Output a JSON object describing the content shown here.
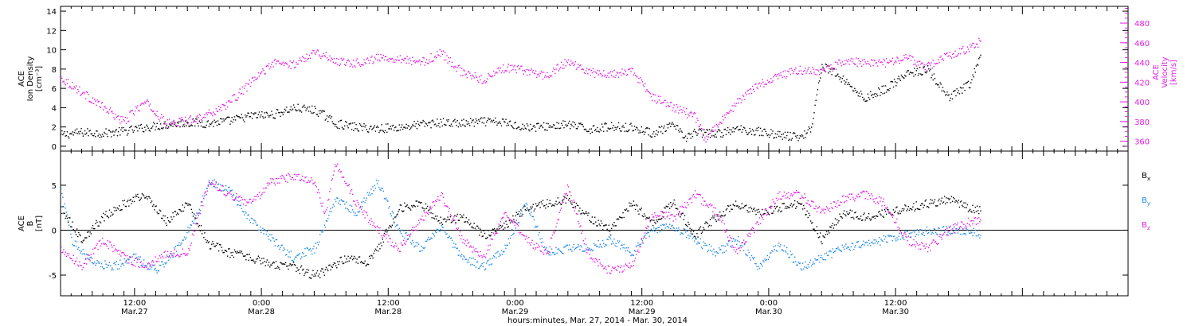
{
  "chart_data": [
    {
      "id": "ion-density-velocity",
      "type": "scatter",
      "left_axis": {
        "label_lines": [
          "ACE",
          "Ion Density",
          "[cm⁻³]"
        ],
        "ylim": [
          -0.5,
          14.5
        ],
        "ticks": [
          0,
          2,
          4,
          6,
          8,
          10,
          12,
          14
        ],
        "color": "#000000"
      },
      "right_axis": {
        "label_lines": [
          "ACE",
          "Velocity",
          "[km/s]"
        ],
        "ylim": [
          350,
          497
        ],
        "ticks": [
          360,
          380,
          400,
          420,
          440,
          460,
          480
        ],
        "color": "#e31ee3"
      },
      "series": [
        {
          "axis": "left",
          "color": "#000000",
          "points": [
            [
              0,
              1.2
            ],
            [
              2,
              1.5
            ],
            [
              4,
              1.4
            ],
            [
              6,
              1.6
            ],
            [
              8,
              2.0
            ],
            [
              10,
              2.3
            ],
            [
              12,
              2.5
            ],
            [
              14,
              2.4
            ],
            [
              16,
              2.7
            ],
            [
              18,
              3.2
            ],
            [
              20,
              3.3
            ],
            [
              22,
              4.0
            ],
            [
              24,
              3.8
            ],
            [
              25,
              3.2
            ],
            [
              26,
              2.4
            ],
            [
              28,
              2.0
            ],
            [
              30,
              1.9
            ],
            [
              32,
              2.0
            ],
            [
              34,
              2.3
            ],
            [
              36,
              2.5
            ],
            [
              38,
              2.4
            ],
            [
              40,
              2.6
            ],
            [
              42,
              2.5
            ],
            [
              44,
              2.0
            ],
            [
              46,
              2.1
            ],
            [
              48,
              2.3
            ],
            [
              50,
              1.8
            ],
            [
              52,
              2.1
            ],
            [
              54,
              2.0
            ],
            [
              56,
              1.4
            ],
            [
              58,
              2.2
            ],
            [
              59,
              0.9
            ],
            [
              60,
              1.5
            ],
            [
              62,
              1.3
            ],
            [
              64,
              1.8
            ],
            [
              66,
              1.6
            ],
            [
              68,
              1.2
            ],
            [
              70,
              1.0
            ],
            [
              71,
              2.0
            ],
            [
              72,
              8.5
            ],
            [
              74,
              7.0
            ],
            [
              76,
              5.0
            ],
            [
              78,
              6.0
            ],
            [
              80,
              7.5
            ],
            [
              82,
              8.0
            ],
            [
              84,
              5.0
            ],
            [
              86,
              6.5
            ],
            [
              87,
              9.5
            ]
          ]
        },
        {
          "axis": "right",
          "color": "#e31ee3",
          "points": [
            [
              0,
              425
            ],
            [
              2,
              410
            ],
            [
              4,
              395
            ],
            [
              6,
              380
            ],
            [
              7,
              392
            ],
            [
              8,
              400
            ],
            [
              10,
              378
            ],
            [
              12,
              382
            ],
            [
              14,
              388
            ],
            [
              16,
              400
            ],
            [
              18,
              420
            ],
            [
              20,
              440
            ],
            [
              22,
              438
            ],
            [
              24,
              452
            ],
            [
              26,
              442
            ],
            [
              28,
              440
            ],
            [
              30,
              445
            ],
            [
              32,
              445
            ],
            [
              34,
              440
            ],
            [
              36,
              450
            ],
            [
              38,
              430
            ],
            [
              40,
              423
            ],
            [
              42,
              435
            ],
            [
              44,
              432
            ],
            [
              46,
              427
            ],
            [
              48,
              442
            ],
            [
              50,
              430
            ],
            [
              52,
              428
            ],
            [
              54,
              432
            ],
            [
              56,
              405
            ],
            [
              58,
              395
            ],
            [
              60,
              385
            ],
            [
              61,
              362
            ],
            [
              62,
              375
            ],
            [
              64,
              400
            ],
            [
              66,
              418
            ],
            [
              68,
              427
            ],
            [
              70,
              433
            ],
            [
              72,
              430
            ],
            [
              74,
              442
            ],
            [
              76,
              440
            ],
            [
              78,
              440
            ],
            [
              80,
              445
            ],
            [
              82,
              436
            ],
            [
              84,
              448
            ],
            [
              86,
              455
            ],
            [
              87,
              462
            ]
          ]
        }
      ]
    },
    {
      "id": "magnetic-field",
      "type": "scatter",
      "left_axis": {
        "label_lines": [
          "ACE",
          "B",
          "[nT]"
        ],
        "ylim": [
          -7.3,
          8.8
        ],
        "ticks": [
          -5,
          0,
          5
        ],
        "color": "#000000"
      },
      "zero_line": true,
      "series": [
        {
          "name": "Bx",
          "color": "#000000",
          "points": [
            [
              0,
              2.5
            ],
            [
              2,
              -1.0
            ],
            [
              4,
              1.5
            ],
            [
              6,
              3.0
            ],
            [
              8,
              4.0
            ],
            [
              10,
              1.0
            ],
            [
              12,
              3.0
            ],
            [
              14,
              -1.5
            ],
            [
              16,
              -2.5
            ],
            [
              18,
              -3.0
            ],
            [
              20,
              -3.8
            ],
            [
              22,
              -4.0
            ],
            [
              24,
              -5.0
            ],
            [
              25,
              -4.5
            ],
            [
              27,
              -3.0
            ],
            [
              29,
              -3.5
            ],
            [
              30,
              -2.0
            ],
            [
              32,
              2.5
            ],
            [
              34,
              3.0
            ],
            [
              36,
              1.0
            ],
            [
              38,
              1.5
            ],
            [
              40,
              -0.5
            ],
            [
              42,
              0.5
            ],
            [
              44,
              2.5
            ],
            [
              46,
              3.0
            ],
            [
              48,
              3.5
            ],
            [
              50,
              1.5
            ],
            [
              52,
              0
            ],
            [
              54,
              3.0
            ],
            [
              56,
              1.0
            ],
            [
              58,
              3.0
            ],
            [
              60,
              -0.5
            ],
            [
              62,
              1.5
            ],
            [
              64,
              3.0
            ],
            [
              66,
              2.0
            ],
            [
              68,
              2.5
            ],
            [
              70,
              3.0
            ],
            [
              72,
              -1.0
            ],
            [
              74,
              2.0
            ],
            [
              76,
              1.5
            ],
            [
              78,
              2.0
            ],
            [
              80,
              2.5
            ],
            [
              82,
              3.0
            ],
            [
              84,
              3.5
            ],
            [
              86,
              2.5
            ],
            [
              87,
              2.2
            ]
          ]
        },
        {
          "name": "By",
          "color": "#1e88e5",
          "points": [
            [
              0,
              4.5
            ],
            [
              1,
              -1.0
            ],
            [
              3,
              -3.5
            ],
            [
              5,
              -4.0
            ],
            [
              7,
              -3.0
            ],
            [
              9,
              -4.5
            ],
            [
              11,
              -2.0
            ],
            [
              13,
              2.0
            ],
            [
              14,
              5.5
            ],
            [
              16,
              4.5
            ],
            [
              18,
              1.0
            ],
            [
              20,
              -1.0
            ],
            [
              22,
              -3.0
            ],
            [
              24,
              -2.0
            ],
            [
              26,
              3.5
            ],
            [
              28,
              2.0
            ],
            [
              30,
              5.5
            ],
            [
              32,
              0
            ],
            [
              34,
              -2.0
            ],
            [
              36,
              0.5
            ],
            [
              38,
              -3.0
            ],
            [
              40,
              -4.0
            ],
            [
              42,
              -2.0
            ],
            [
              44,
              3.0
            ],
            [
              46,
              -2.5
            ],
            [
              48,
              -2.0
            ],
            [
              50,
              -2.0
            ],
            [
              52,
              -1.0
            ],
            [
              54,
              -2.5
            ],
            [
              56,
              0
            ],
            [
              58,
              0.5
            ],
            [
              60,
              -1.0
            ],
            [
              62,
              -2.5
            ],
            [
              64,
              -1.0
            ],
            [
              66,
              -4.0
            ],
            [
              68,
              -1.5
            ],
            [
              70,
              -4.0
            ],
            [
              72,
              -3.0
            ],
            [
              74,
              -2.0
            ],
            [
              76,
              -1.5
            ],
            [
              78,
              -1.0
            ],
            [
              80,
              -0.5
            ],
            [
              82,
              0
            ],
            [
              84,
              0
            ],
            [
              86,
              0
            ],
            [
              87,
              -0.5
            ]
          ]
        },
        {
          "name": "Bz",
          "color": "#e31ee3",
          "points": [
            [
              0,
              -2.0
            ],
            [
              2,
              -4.0
            ],
            [
              4,
              -1.0
            ],
            [
              6,
              -3.0
            ],
            [
              8,
              -4.0
            ],
            [
              10,
              -2.5
            ],
            [
              12,
              -2.5
            ],
            [
              14,
              5.5
            ],
            [
              16,
              4.0
            ],
            [
              18,
              3.0
            ],
            [
              20,
              5.5
            ],
            [
              22,
              6.0
            ],
            [
              24,
              5.5
            ],
            [
              25,
              2.0
            ],
            [
              26,
              7.5
            ],
            [
              28,
              3.0
            ],
            [
              30,
              0
            ],
            [
              32,
              -2.0
            ],
            [
              34,
              1.0
            ],
            [
              36,
              4.0
            ],
            [
              38,
              -1.0
            ],
            [
              40,
              -3.0
            ],
            [
              42,
              2.0
            ],
            [
              44,
              -1.0
            ],
            [
              46,
              -2.5
            ],
            [
              48,
              5.0
            ],
            [
              50,
              -3.0
            ],
            [
              52,
              -4.5
            ],
            [
              54,
              -4.0
            ],
            [
              56,
              2.0
            ],
            [
              58,
              1.5
            ],
            [
              60,
              4.0
            ],
            [
              62,
              2.0
            ],
            [
              64,
              -2.5
            ],
            [
              66,
              1.0
            ],
            [
              68,
              4.0
            ],
            [
              70,
              4.0
            ],
            [
              72,
              2.0
            ],
            [
              74,
              3.5
            ],
            [
              76,
              4.0
            ],
            [
              78,
              3.0
            ],
            [
              80,
              -1.0
            ],
            [
              82,
              -2.0
            ],
            [
              84,
              0
            ],
            [
              86,
              1.0
            ],
            [
              87,
              1.2
            ]
          ]
        }
      ],
      "legend": [
        {
          "label": "B",
          "sub": "x",
          "color": "#000000"
        },
        {
          "label": "B",
          "sub": "y",
          "color": "#1e88e5"
        },
        {
          "label": "B",
          "sub": "z",
          "color": "#e31ee3"
        }
      ]
    }
  ],
  "x_axis": {
    "unit": "hours since 2014-03-27 05:00",
    "xlim": [
      0,
      101
    ],
    "tick_labels": [
      {
        "x": 7,
        "time": "12:00",
        "date": "Mar.27"
      },
      {
        "x": 19,
        "time": "0:00",
        "date": "Mar.28"
      },
      {
        "x": 31,
        "time": "12:00",
        "date": "Mar.28"
      },
      {
        "x": 43,
        "time": "0:00",
        "date": "Mar.29"
      },
      {
        "x": 55,
        "time": "12:00",
        "date": "Mar.29"
      },
      {
        "x": 67,
        "time": "0:00",
        "date": "Mar.30"
      },
      {
        "x": 79,
        "time": "12:00",
        "date": "Mar.30"
      }
    ],
    "minor_step": 1,
    "mid_step": 3,
    "title": "hours:minutes, Mar. 27, 2014 - Mar. 30, 2014"
  }
}
